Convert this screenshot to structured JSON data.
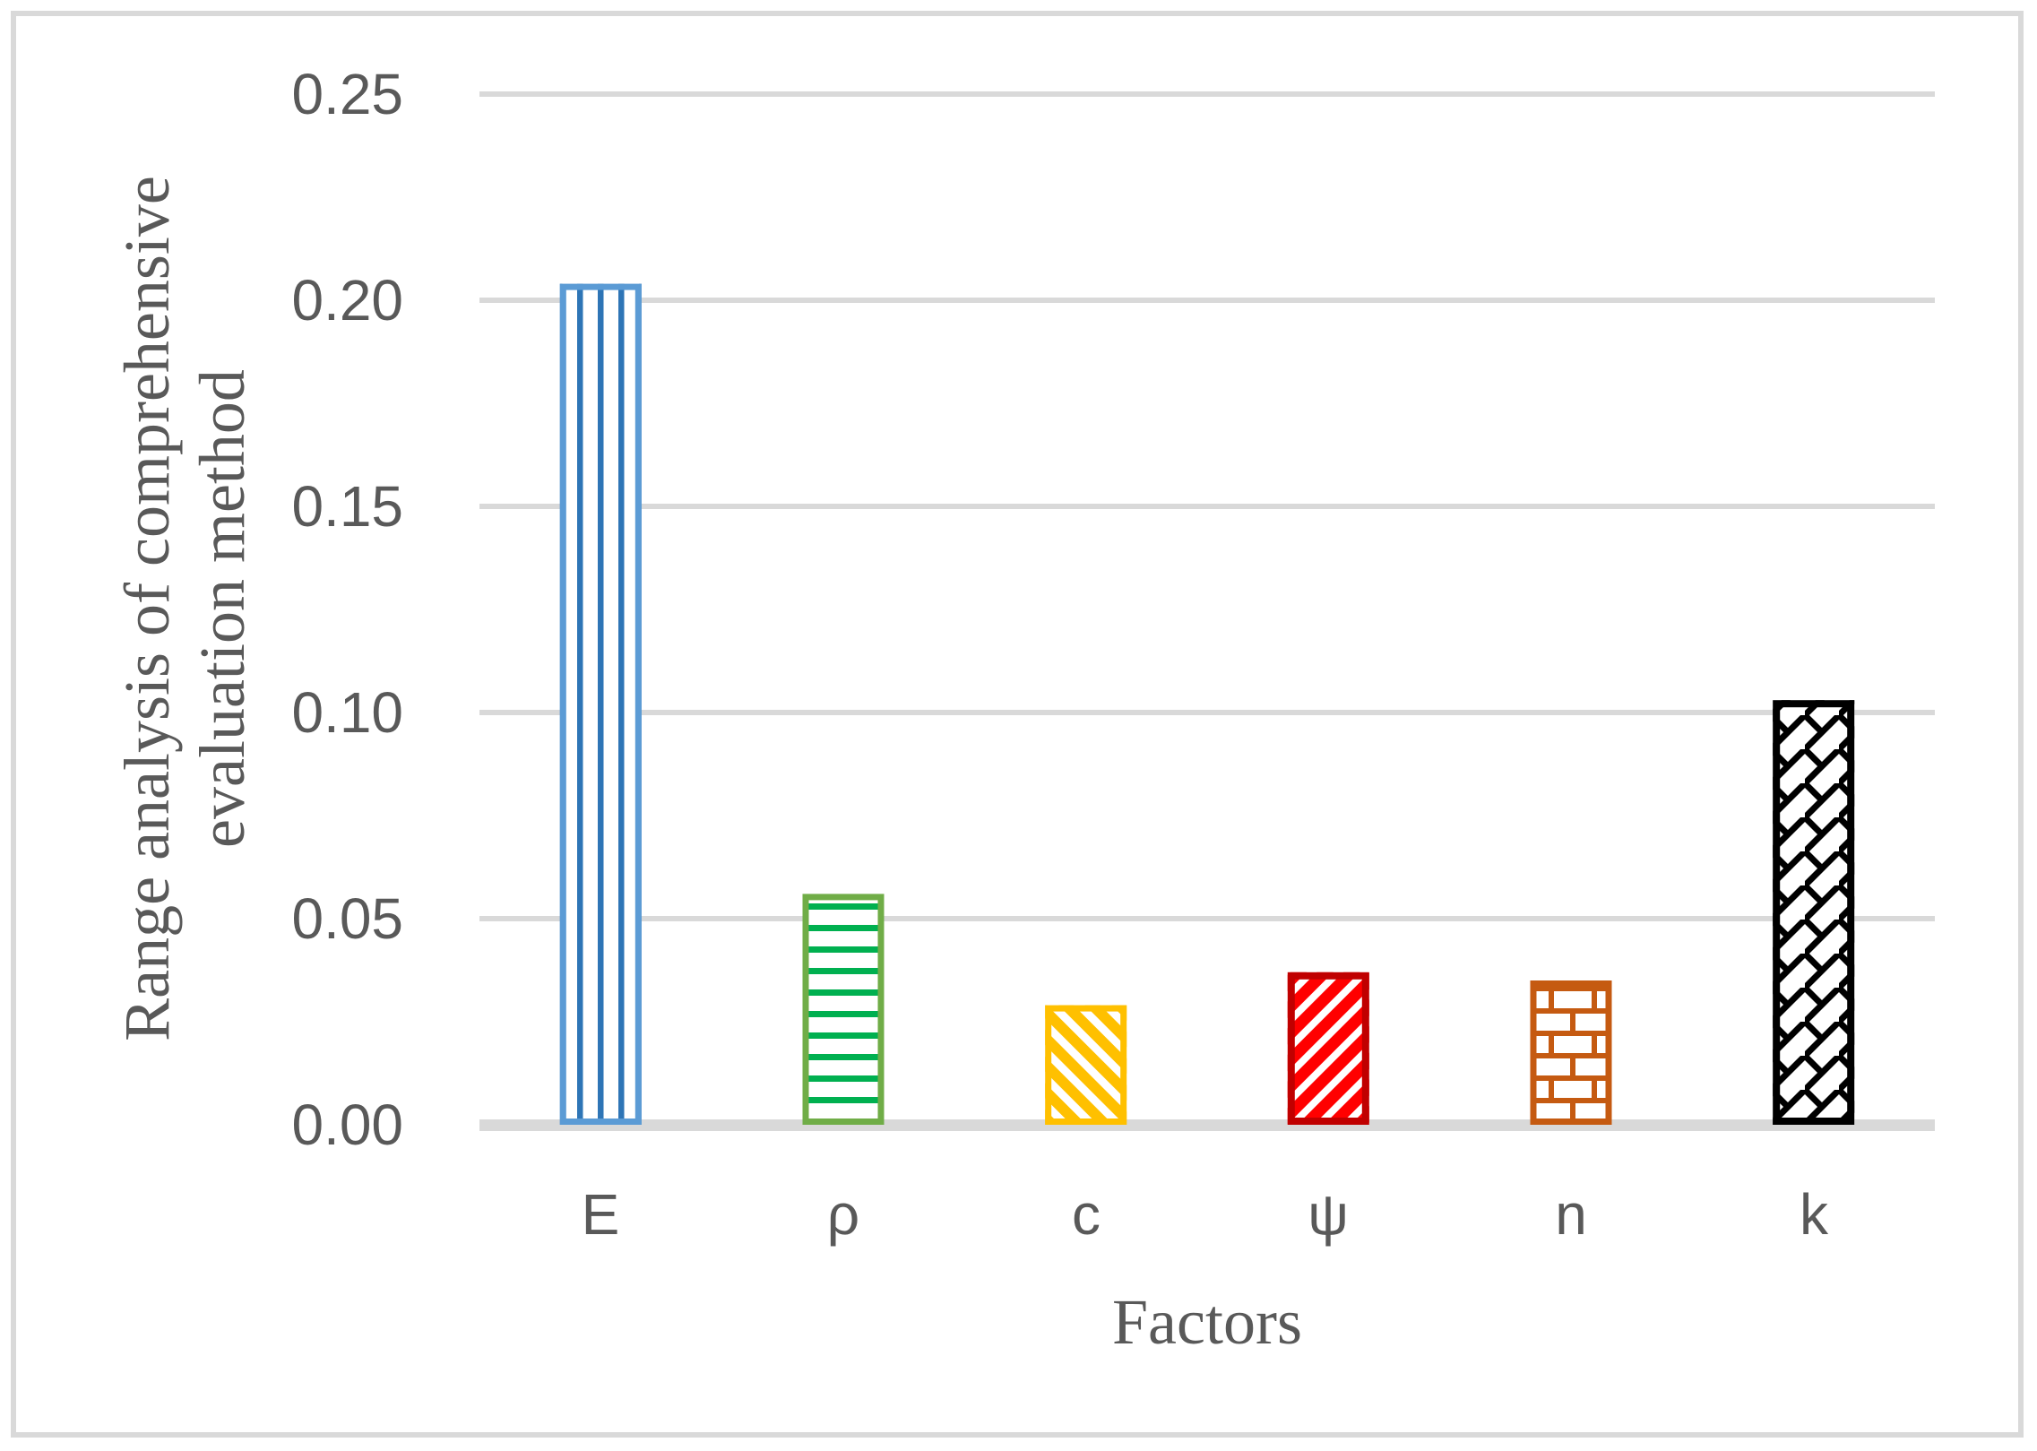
{
  "colors": {
    "background": "#FFFFFF",
    "figure_border": "#D9D9D9",
    "gridline": "#D9D9D9",
    "axis_line": "#D9D9D9",
    "text": "#595959"
  },
  "chart_data": {
    "type": "bar",
    "title": "",
    "xlabel": "Factors",
    "ylabel": "Range analysis of comprehensive evaluation method",
    "ylabel_lines": [
      "Range analysis of comprehensive",
      "evaluation method"
    ],
    "categories": [
      "E",
      "ρ",
      "c",
      "ψ",
      "n",
      "k"
    ],
    "values": [
      0.204,
      0.056,
      0.029,
      0.037,
      0.035,
      0.103
    ],
    "ylim": [
      0,
      0.25
    ],
    "yticks": [
      0,
      0.05,
      0.1,
      0.15,
      0.2,
      0.25
    ],
    "ytick_labels": [
      "0.00",
      "0.05",
      "0.10",
      "0.15",
      "0.20",
      "0.25"
    ],
    "grid": true,
    "legend": false,
    "bar_styles": [
      {
        "pattern": "vertical-stripes",
        "stroke": "#5B9BD5",
        "fill": "#2E75B6",
        "stroke_width": 7
      },
      {
        "pattern": "horizontal-stripes",
        "stroke": "#70AD47",
        "fill": "#00B050",
        "stroke_width": 7
      },
      {
        "pattern": "diagonal-stripes-down",
        "stroke": "#FFC000",
        "fill": "#FFC000",
        "stroke_width": 7
      },
      {
        "pattern": "diagonal-stripes-up",
        "stroke": "#C00000",
        "fill": "#FF0000",
        "stroke_width": 8
      },
      {
        "pattern": "brick",
        "stroke": "#C55A11",
        "fill": "#C55A11",
        "stroke_width": 7
      },
      {
        "pattern": "diagonal-brick",
        "stroke": "#000000",
        "fill": "#000000",
        "stroke_width": 8
      }
    ]
  }
}
